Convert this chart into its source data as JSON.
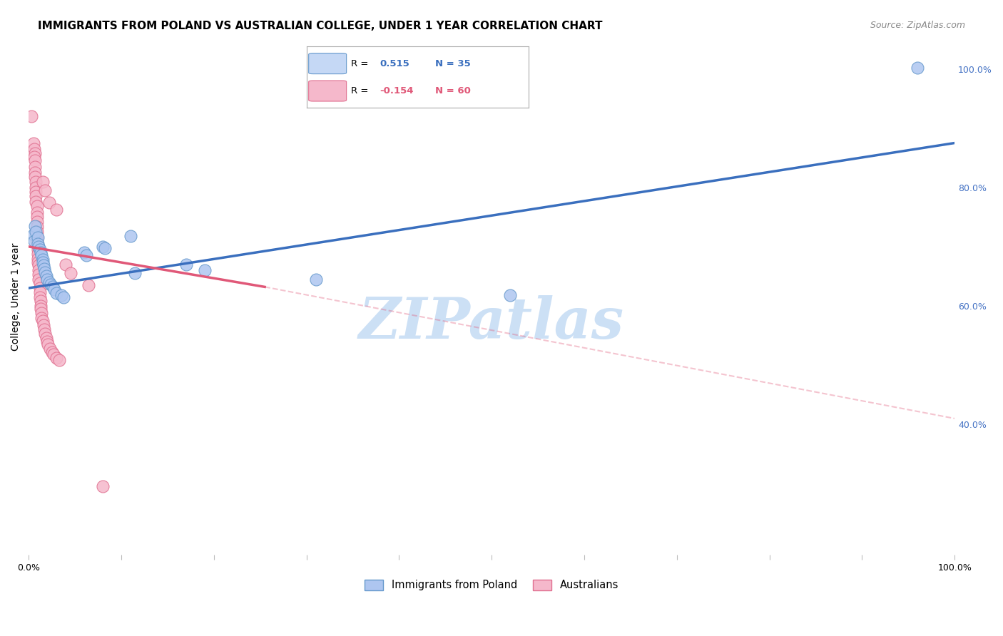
{
  "title": "IMMIGRANTS FROM POLAND VS AUSTRALIAN COLLEGE, UNDER 1 YEAR CORRELATION CHART",
  "source": "Source: ZipAtlas.com",
  "ylabel": "College, Under 1 year",
  "watermark": "ZIPatlas",
  "blue_points": [
    [
      0.005,
      0.72
    ],
    [
      0.006,
      0.71
    ],
    [
      0.007,
      0.735
    ],
    [
      0.008,
      0.725
    ],
    [
      0.01,
      0.715
    ],
    [
      0.01,
      0.705
    ],
    [
      0.011,
      0.7
    ],
    [
      0.012,
      0.695
    ],
    [
      0.013,
      0.69
    ],
    [
      0.014,
      0.685
    ],
    [
      0.015,
      0.678
    ],
    [
      0.015,
      0.673
    ],
    [
      0.016,
      0.668
    ],
    [
      0.017,
      0.662
    ],
    [
      0.018,
      0.656
    ],
    [
      0.019,
      0.65
    ],
    [
      0.02,
      0.645
    ],
    [
      0.022,
      0.64
    ],
    [
      0.024,
      0.636
    ],
    [
      0.026,
      0.632
    ],
    [
      0.028,
      0.628
    ],
    [
      0.03,
      0.622
    ],
    [
      0.035,
      0.618
    ],
    [
      0.038,
      0.614
    ],
    [
      0.06,
      0.69
    ],
    [
      0.062,
      0.685
    ],
    [
      0.08,
      0.7
    ],
    [
      0.082,
      0.698
    ],
    [
      0.11,
      0.718
    ],
    [
      0.115,
      0.655
    ],
    [
      0.17,
      0.67
    ],
    [
      0.19,
      0.66
    ],
    [
      0.31,
      0.645
    ],
    [
      0.52,
      0.618
    ],
    [
      0.96,
      1.002
    ]
  ],
  "pink_points": [
    [
      0.003,
      0.92
    ],
    [
      0.005,
      0.875
    ],
    [
      0.006,
      0.865
    ],
    [
      0.007,
      0.858
    ],
    [
      0.006,
      0.852
    ],
    [
      0.007,
      0.845
    ],
    [
      0.007,
      0.835
    ],
    [
      0.007,
      0.825
    ],
    [
      0.007,
      0.818
    ],
    [
      0.008,
      0.81
    ],
    [
      0.008,
      0.8
    ],
    [
      0.008,
      0.792
    ],
    [
      0.008,
      0.785
    ],
    [
      0.008,
      0.776
    ],
    [
      0.009,
      0.768
    ],
    [
      0.009,
      0.758
    ],
    [
      0.009,
      0.75
    ],
    [
      0.009,
      0.742
    ],
    [
      0.009,
      0.733
    ],
    [
      0.009,
      0.725
    ],
    [
      0.009,
      0.718
    ],
    [
      0.009,
      0.71
    ],
    [
      0.01,
      0.702
    ],
    [
      0.01,
      0.695
    ],
    [
      0.01,
      0.688
    ],
    [
      0.01,
      0.68
    ],
    [
      0.01,
      0.673
    ],
    [
      0.011,
      0.668
    ],
    [
      0.011,
      0.66
    ],
    [
      0.011,
      0.653
    ],
    [
      0.011,
      0.645
    ],
    [
      0.012,
      0.638
    ],
    [
      0.012,
      0.63
    ],
    [
      0.012,
      0.623
    ],
    [
      0.012,
      0.615
    ],
    [
      0.013,
      0.608
    ],
    [
      0.013,
      0.6
    ],
    [
      0.013,
      0.595
    ],
    [
      0.014,
      0.588
    ],
    [
      0.014,
      0.58
    ],
    [
      0.015,
      0.575
    ],
    [
      0.016,
      0.567
    ],
    [
      0.017,
      0.56
    ],
    [
      0.018,
      0.553
    ],
    [
      0.019,
      0.546
    ],
    [
      0.02,
      0.54
    ],
    [
      0.021,
      0.535
    ],
    [
      0.023,
      0.528
    ],
    [
      0.025,
      0.522
    ],
    [
      0.027,
      0.518
    ],
    [
      0.03,
      0.512
    ],
    [
      0.033,
      0.508
    ],
    [
      0.015,
      0.81
    ],
    [
      0.018,
      0.795
    ],
    [
      0.022,
      0.775
    ],
    [
      0.03,
      0.763
    ],
    [
      0.04,
      0.67
    ],
    [
      0.045,
      0.655
    ],
    [
      0.065,
      0.635
    ],
    [
      0.08,
      0.295
    ]
  ],
  "blue_line": {
    "x": [
      0.0,
      1.0
    ],
    "y": [
      0.63,
      0.875
    ]
  },
  "pink_line_solid": {
    "x": [
      0.0,
      0.255
    ],
    "y": [
      0.7,
      0.632
    ]
  },
  "pink_line_dashed": {
    "x": [
      0.255,
      1.1
    ],
    "y": [
      0.632,
      0.38
    ]
  },
  "xlim": [
    0.0,
    1.0
  ],
  "ylim": [
    0.18,
    1.05
  ],
  "right_yticks": [
    1.0,
    0.8,
    0.6,
    0.4
  ],
  "right_yticklabels": [
    "100.0%",
    "80.0%",
    "60.0%",
    "40.0%"
  ],
  "right_ytick_color": "#4472c4",
  "background_color": "#ffffff",
  "grid_color": "#dddddd",
  "title_fontsize": 11,
  "source_fontsize": 9,
  "axis_label_fontsize": 10,
  "tick_fontsize": 9,
  "watermark_color": "#cce0f5",
  "blue_scatter_color": "#aec6f0",
  "blue_scatter_edge": "#6699cc",
  "pink_scatter_color": "#f5b8cb",
  "pink_scatter_edge": "#e07090",
  "blue_line_color": "#3a6fbe",
  "pink_line_color": "#e05878",
  "legend_blue_fill": "#c5d8f5",
  "legend_blue_edge": "#6699cc",
  "legend_pink_fill": "#f5b8cb",
  "legend_pink_edge": "#e07090",
  "legend_r_blue": "#3a6fbe",
  "legend_r_pink": "#e05878",
  "legend_n_blue": "#3a6fbe",
  "legend_n_pink": "#e05878"
}
